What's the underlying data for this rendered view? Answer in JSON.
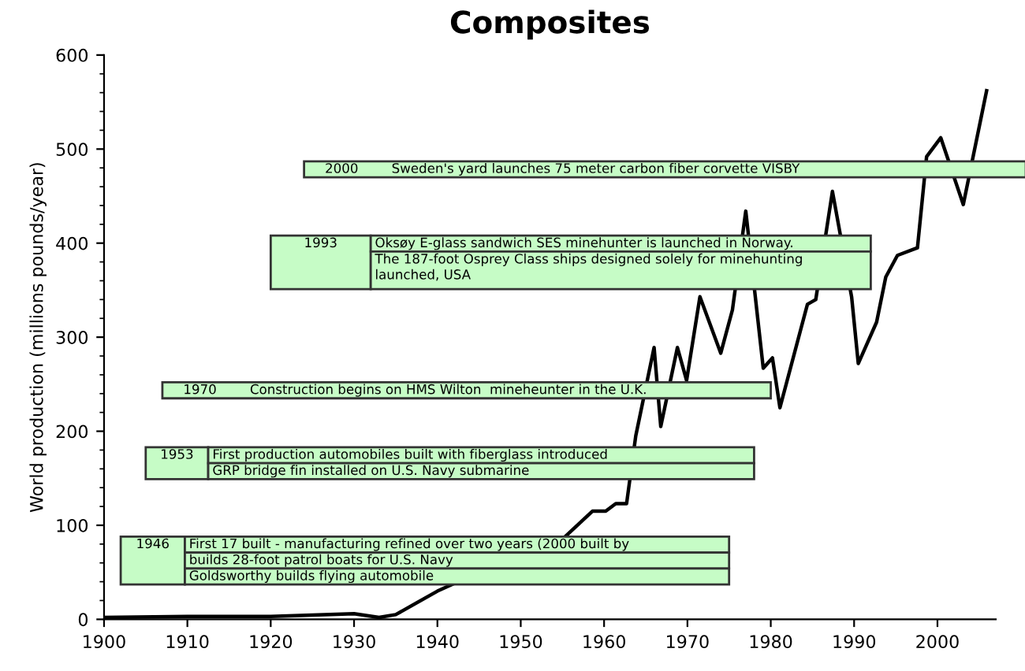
{
  "chart_data": {
    "type": "line",
    "title": "Composites",
    "ylabel": "World production (millions pounds/year)",
    "x": [
      1900,
      1910,
      1920,
      1930,
      1933,
      1935,
      1940,
      1950,
      1955.1,
      1958.6,
      1960.2,
      1961.4,
      1962.7,
      1963.8,
      1966.0,
      1966.8,
      1968.8,
      1969.9,
      1971.5,
      1974.0,
      1975.4,
      1977.0,
      1979.1,
      1980.2,
      1981.1,
      1984.4,
      1985.4,
      1987.4,
      1989.7,
      1990.5,
      1992.7,
      1993.8,
      1995.2,
      1997.6,
      1998.7,
      2000.4,
      2003.1,
      2005.9
    ],
    "series": [
      {
        "color": "#000000",
        "values": [
          2,
          3,
          3,
          6,
          2,
          5,
          30,
          70,
          86,
          115,
          115,
          123,
          123,
          195,
          289,
          205,
          289,
          254,
          343,
          283,
          329,
          434,
          267,
          278,
          225,
          335,
          340,
          455,
          343,
          272,
          316,
          364,
          387,
          395,
          492,
          512,
          441,
          562
        ]
      }
    ],
    "xlim": [
      1900,
      2007
    ],
    "xticks": [
      1900,
      1910,
      1920,
      1930,
      1940,
      1950,
      1960,
      1970,
      1980,
      1990,
      2000
    ],
    "ylim": [
      0,
      600
    ],
    "yticks": [
      0,
      100,
      200,
      300,
      400,
      500,
      600
    ],
    "grid": false,
    "marker": "none",
    "line_style": "solid",
    "annotations": [
      "1946",
      "First 17 built - manufacturing refined over two years (2000 built by",
      "builds 28-foot patrol boats for U.S. Navy",
      "Goldsworthy builds flying automobile",
      "1953",
      "First production automobiles built with fiberglass introduced",
      "GRP bridge fin installed on U.S. Navy submarine",
      "1970",
      "Construction begins on HMS Wilton  mineheunter in the U.K.",
      "1993",
      "Oksøy E-glass sandwich SES minehunter is launched in Norway.",
      "The 187-foot Osprey Class ships designed solely for minehunting\nlaunched, USA",
      "2000",
      "Sweden's yard launches 75 meter carbon fiber corvette VISBY"
    ]
  }
}
